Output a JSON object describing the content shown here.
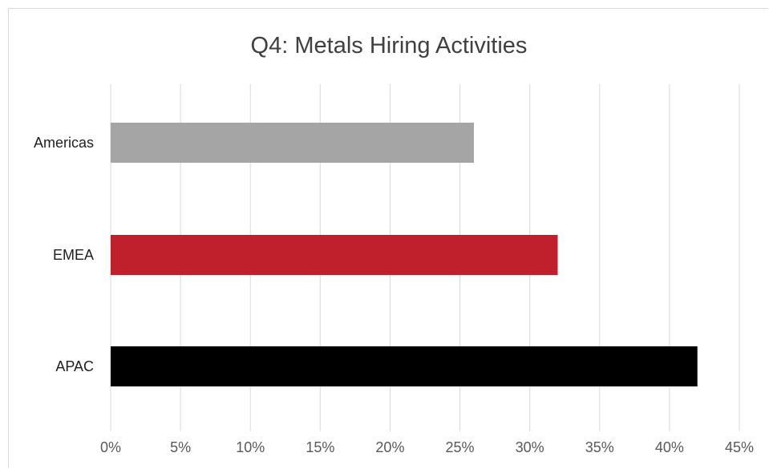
{
  "chart_data": {
    "type": "bar",
    "orientation": "horizontal",
    "title": "Q4: Metals Hiring Activities",
    "xlabel": "",
    "ylabel": "",
    "categories": [
      "Americas",
      "EMEA",
      "APAC"
    ],
    "values": [
      26,
      32,
      42
    ],
    "value_unit": "%",
    "bar_colors": [
      "#a5a5a5",
      "#c0202b",
      "#000000"
    ],
    "xlim": [
      0,
      45
    ],
    "x_ticks": [
      0,
      5,
      10,
      15,
      20,
      25,
      30,
      35,
      40,
      45
    ],
    "x_tick_labels": [
      "0%",
      "5%",
      "10%",
      "15%",
      "20%",
      "25%",
      "30%",
      "35%",
      "40%",
      "45%"
    ],
    "grid": "vertical",
    "gridline_color": "#d9d9d9",
    "legend": "none"
  }
}
